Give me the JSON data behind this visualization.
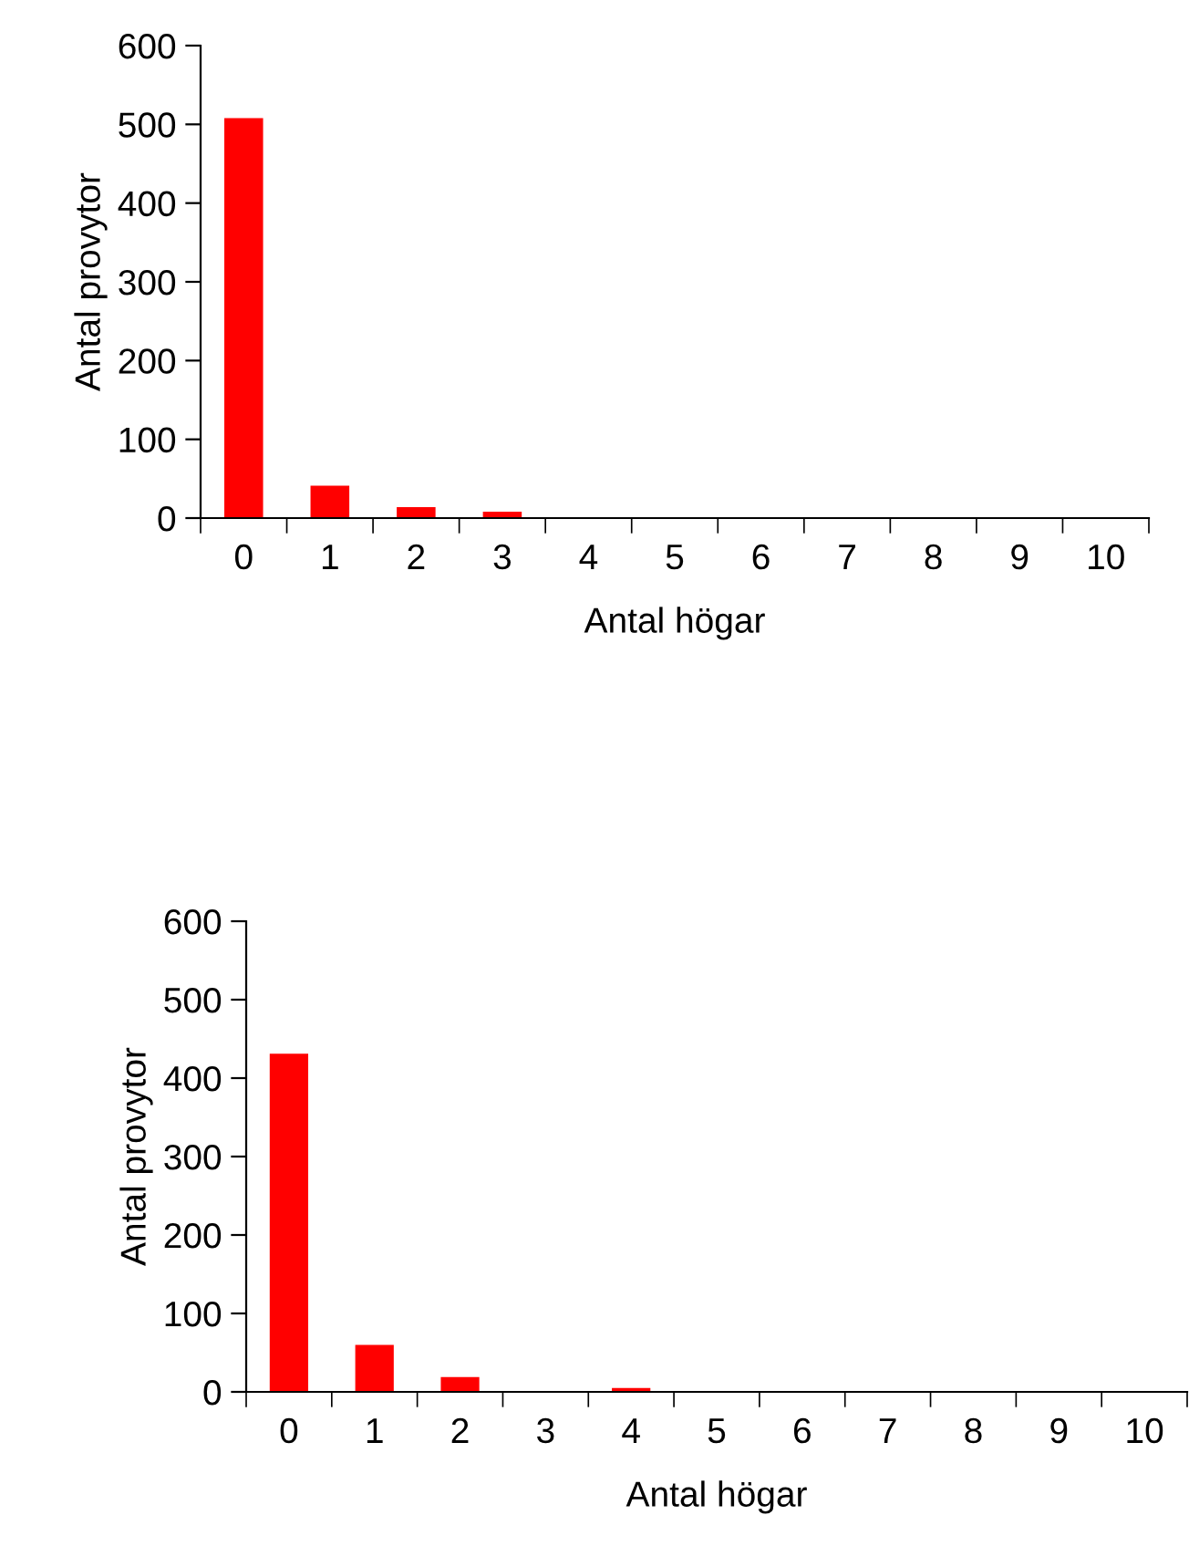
{
  "chart_data": [
    {
      "type": "bar",
      "xlabel": "Antal högar",
      "ylabel": "Antal provytor",
      "categories": [
        "0",
        "1",
        "2",
        "3",
        "4",
        "5",
        "6",
        "7",
        "8",
        "9",
        "10"
      ],
      "values": [
        508,
        41,
        14,
        8,
        0,
        0,
        0,
        0,
        0,
        0,
        0
      ],
      "color": "#ff0000",
      "ylim": [
        0,
        600
      ],
      "yticks": [
        0,
        100,
        200,
        300,
        400,
        500,
        600
      ],
      "grid": false,
      "legend": false
    },
    {
      "type": "bar",
      "xlabel": "Antal högar",
      "ylabel": "Antal provytor",
      "categories": [
        "0",
        "1",
        "2",
        "3",
        "4",
        "5",
        "6",
        "7",
        "8",
        "9",
        "10"
      ],
      "values": [
        431,
        60,
        19,
        0,
        5,
        0,
        0,
        0,
        0,
        0,
        0
      ],
      "color": "#ff0000",
      "ylim": [
        0,
        600
      ],
      "yticks": [
        0,
        100,
        200,
        300,
        400,
        500,
        600
      ],
      "grid": false,
      "legend": false
    }
  ]
}
